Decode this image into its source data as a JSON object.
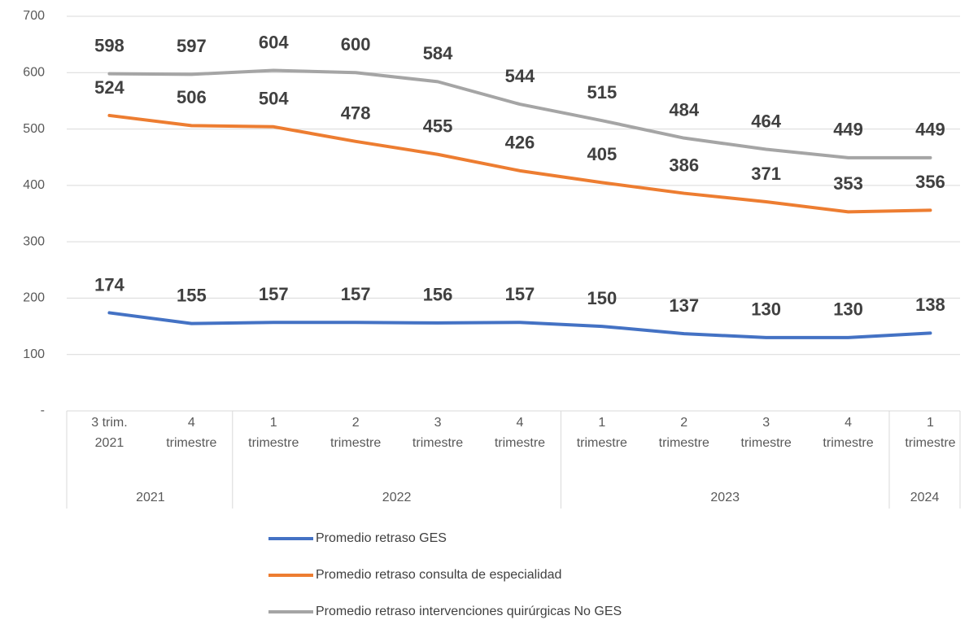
{
  "chart_data": {
    "type": "line",
    "categories": [
      [
        "3 trim.",
        "2021"
      ],
      [
        "4",
        "trimestre"
      ],
      [
        "1",
        "trimestre"
      ],
      [
        "2",
        "trimestre"
      ],
      [
        "3",
        "trimestre"
      ],
      [
        "4",
        "trimestre"
      ],
      [
        "1",
        "trimestre"
      ],
      [
        "2",
        "trimestre"
      ],
      [
        "3",
        "trimestre"
      ],
      [
        "4",
        "trimestre"
      ],
      [
        "1",
        "trimestre"
      ]
    ],
    "groups": [
      {
        "label": "2021",
        "span": 2
      },
      {
        "label": "2022",
        "span": 4
      },
      {
        "label": "2023",
        "span": 4
      },
      {
        "label": "2024",
        "span": 1
      }
    ],
    "series": [
      {
        "name": "Promedio retraso GES",
        "color": "#4472c4",
        "values": [
          174,
          155,
          157,
          157,
          156,
          157,
          150,
          137,
          130,
          130,
          138
        ]
      },
      {
        "name": "Promedio retraso consulta de especialidad",
        "color": "#ed7d31",
        "values": [
          524,
          506,
          504,
          478,
          455,
          426,
          405,
          386,
          371,
          353,
          356
        ]
      },
      {
        "name": "Promedio retraso intervenciones quirúrgicas No GES",
        "color": "#a5a5a5",
        "values": [
          598,
          597,
          604,
          600,
          584,
          544,
          515,
          484,
          464,
          449,
          449
        ]
      }
    ],
    "ylim": [
      0,
      700
    ],
    "yticks": [
      {
        "value": 0,
        "label": "-"
      },
      100,
      200,
      300,
      400,
      500,
      600,
      700
    ],
    "grid": true,
    "legend": "bottom"
  }
}
